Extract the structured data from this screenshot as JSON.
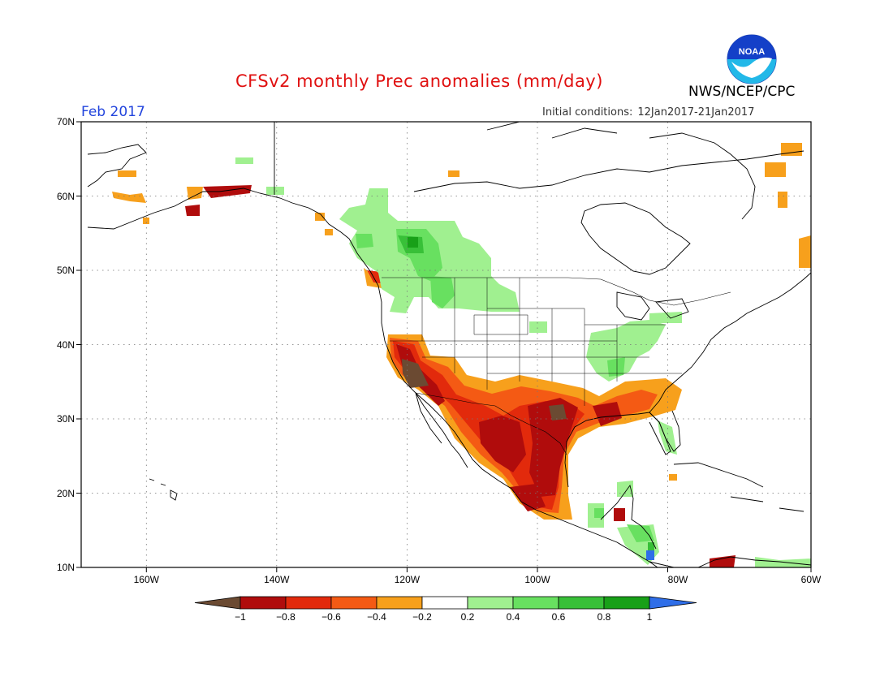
{
  "header": {
    "title": "CFSv2 monthly Prec anomalies (mm/day)",
    "agency": "NWS/NCEP/CPC",
    "logo_text": "NOAA",
    "month": "Feb 2017",
    "init_label": "Initial conditions:",
    "init_range": "12Jan2017-21Jan2017"
  },
  "map": {
    "lon_range": [
      -172,
      -60
    ],
    "lat_range": [
      10,
      70
    ],
    "lat_ticks": [
      "70N",
      "60N",
      "50N",
      "40N",
      "30N",
      "20N",
      "10N"
    ],
    "lon_ticks": [
      "160W",
      "140W",
      "120W",
      "100W",
      "80W",
      "60W"
    ],
    "grid": "dotted"
  },
  "legend": {
    "labels": [
      "-1",
      "-0.8",
      "-0.6",
      "-0.4",
      "-0.2",
      "0.2",
      "0.4",
      "0.6",
      "0.8",
      "1"
    ],
    "colors": [
      "#6b4a32",
      "#b00c0c",
      "#e22a0c",
      "#f45a14",
      "#f7a01c",
      "#ffffff",
      "#a0f090",
      "#68e060",
      "#38c038",
      "#18a018",
      "#2f6ee8"
    ]
  },
  "colors": {
    "land_outline": "#000000",
    "dry_strong": "#6b4a32",
    "dry_dark": "#b00c0c",
    "dry_red": "#e22a0c",
    "dry_orange": "#f45a14",
    "dry_light": "#f7a01c",
    "wet_light": "#a0f090",
    "wet_mid": "#68e060",
    "wet_dark": "#38c038",
    "wet_strong": "#18a018"
  }
}
